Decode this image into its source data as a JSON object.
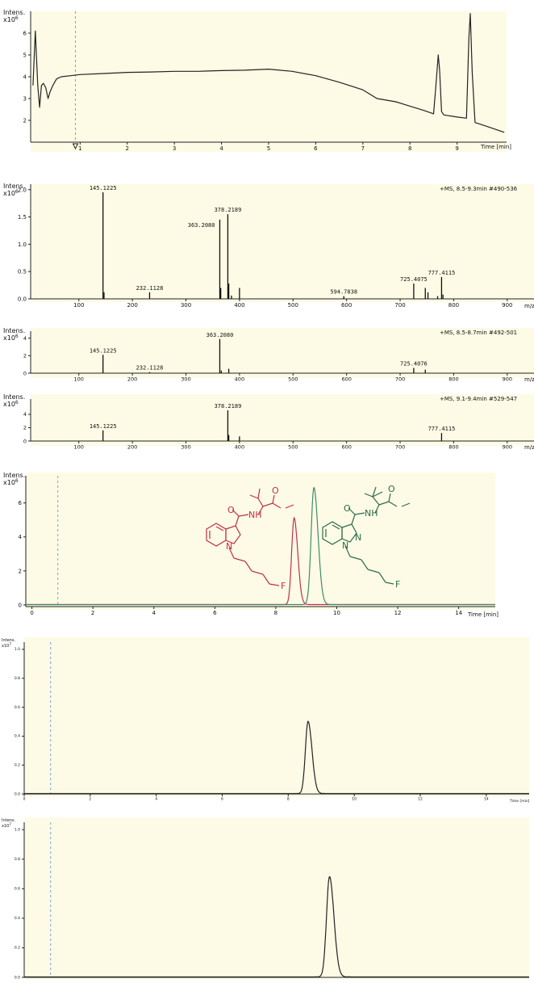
{
  "chart_data": [
    {
      "type": "line",
      "title": "",
      "ylabel": "Intens.",
      "yunit": "x10^6",
      "xlabel": "Time [min]",
      "xlim": [
        -0.05,
        10.05
      ],
      "ylim": [
        1.0,
        7.0
      ],
      "xticks": [
        1,
        2,
        3,
        4,
        5,
        6,
        7,
        8,
        9
      ],
      "yticks": [
        2,
        3,
        4,
        5,
        6
      ],
      "x": [
        0.0,
        0.05,
        0.1,
        0.14,
        0.18,
        0.22,
        0.27,
        0.32,
        0.36,
        0.42,
        0.5,
        0.6,
        0.8,
        1.0,
        1.5,
        2.0,
        2.5,
        3.0,
        3.5,
        4.0,
        4.5,
        5.0,
        5.5,
        6.0,
        6.5,
        7.0,
        7.3,
        7.7,
        8.0,
        8.3,
        8.5,
        8.55,
        8.6,
        8.63,
        8.67,
        8.72,
        9.0,
        9.2,
        9.25,
        9.28,
        9.32,
        9.38,
        9.6,
        9.8,
        10.0
      ],
      "y": [
        3.6,
        6.1,
        3.6,
        2.6,
        3.6,
        3.7,
        3.5,
        3.0,
        3.3,
        3.6,
        3.9,
        4.0,
        4.05,
        4.1,
        4.15,
        4.2,
        4.22,
        4.25,
        4.25,
        4.28,
        4.3,
        4.35,
        4.25,
        4.05,
        3.75,
        3.4,
        3.0,
        2.85,
        2.65,
        2.45,
        2.3,
        3.6,
        5.0,
        4.3,
        2.4,
        2.25,
        2.15,
        2.1,
        5.8,
        6.9,
        4.2,
        1.9,
        1.75,
        1.6,
        1.45
      ],
      "marker_x": 0.9
    },
    {
      "type": "bar",
      "title": "+MS, 8.5-9.3min #490-536",
      "ylabel": "Intens.",
      "yunit": "x10^6",
      "xlabel": "m/z",
      "xlim": [
        10,
        950
      ],
      "ylim": [
        0,
        2.1
      ],
      "xticks": [
        100,
        200,
        300,
        400,
        500,
        600,
        700,
        800,
        900
      ],
      "yticks": [
        0.0,
        0.5,
        1.0,
        1.5,
        2.0
      ],
      "peaks": [
        {
          "mz": 145.1225,
          "y": 1.95,
          "label": "145.1225"
        },
        {
          "mz": 147,
          "y": 0.12
        },
        {
          "mz": 232.1128,
          "y": 0.12,
          "label": "232.1128"
        },
        {
          "mz": 363.208,
          "y": 1.45,
          "label": "363.2080"
        },
        {
          "mz": 365,
          "y": 0.2
        },
        {
          "mz": 378.2189,
          "y": 1.55,
          "label": "378.2189"
        },
        {
          "mz": 380,
          "y": 0.28
        },
        {
          "mz": 385,
          "y": 0.06
        },
        {
          "mz": 400,
          "y": 0.2
        },
        {
          "mz": 594.7838,
          "y": 0.05,
          "label": "594.7838"
        },
        {
          "mz": 725.4075,
          "y": 0.28,
          "label": "725.4075"
        },
        {
          "mz": 747,
          "y": 0.2
        },
        {
          "mz": 752,
          "y": 0.12
        },
        {
          "mz": 770,
          "y": 0.05
        },
        {
          "mz": 777.4115,
          "y": 0.4,
          "label": "777.4115"
        },
        {
          "mz": 780,
          "y": 0.08
        }
      ]
    },
    {
      "type": "bar",
      "title": "+MS, 8.5-8.7min #492-501",
      "ylabel": "Intens.",
      "yunit": "x10^6",
      "xlabel": "m/z",
      "xlim": [
        10,
        950
      ],
      "ylim": [
        0,
        4.8
      ],
      "xticks": [
        100,
        200,
        300,
        400,
        500,
        600,
        700,
        800,
        900
      ],
      "yticks": [
        0,
        2,
        4
      ],
      "peaks": [
        {
          "mz": 145.1225,
          "y": 2.1,
          "label": "145.1225"
        },
        {
          "mz": 232.1128,
          "y": 0.12,
          "label": "232.1128"
        },
        {
          "mz": 363.208,
          "y": 3.9,
          "label": "363.2080"
        },
        {
          "mz": 366,
          "y": 0.3
        },
        {
          "mz": 380,
          "y": 0.5
        },
        {
          "mz": 725.4076,
          "y": 0.6,
          "label": "725.4076"
        },
        {
          "mz": 747,
          "y": 0.4
        }
      ]
    },
    {
      "type": "bar",
      "title": "+MS, 9.1-9.4min #529-547",
      "ylabel": "Intens.",
      "yunit": "x10^6",
      "xlabel": "m/z",
      "xlim": [
        10,
        950
      ],
      "ylim": [
        0,
        6.3
      ],
      "xticks": [
        100,
        200,
        300,
        400,
        500,
        600,
        700,
        800,
        900
      ],
      "yticks": [
        0,
        2,
        4
      ],
      "peaks": [
        {
          "mz": 145.1225,
          "y": 1.6,
          "label": "145.1225"
        },
        {
          "mz": 378.2189,
          "y": 4.6,
          "label": "378.2189"
        },
        {
          "mz": 380,
          "y": 0.9
        },
        {
          "mz": 400,
          "y": 0.7
        },
        {
          "mz": 777.4115,
          "y": 1.2,
          "label": "777.4115"
        }
      ]
    },
    {
      "type": "line",
      "title": "",
      "ylabel": "Intens.",
      "yunit": "x10^6",
      "xlabel": "Time [min]",
      "xlim": [
        -0.2,
        15.2
      ],
      "ylim": [
        -0.1,
        7.6
      ],
      "xticks": [
        0,
        2,
        4,
        6,
        8,
        10,
        12,
        14
      ],
      "yticks": [
        0,
        2,
        4,
        6
      ],
      "marker_x": 0.85,
      "series": [
        {
          "color": "#c0304a",
          "peak_x": 8.6,
          "peak_y": 5.1,
          "width": 0.08
        },
        {
          "color": "#3d8c68",
          "peak_x": 9.25,
          "peak_y": 6.9,
          "width": 0.09
        }
      ]
    },
    {
      "type": "line",
      "title": "",
      "ylabel": "Intens.",
      "yunit": "x10^7",
      "xlabel": "Time [min]",
      "xlim": [
        0,
        15.3
      ],
      "ylim": [
        0,
        1.05
      ],
      "xticks": [
        0,
        2,
        4,
        6,
        8,
        10,
        12,
        14
      ],
      "yticks": [
        0.0,
        0.2,
        0.4,
        0.6,
        0.8,
        1.0
      ],
      "marker_x": 0.8,
      "peak_x": 8.6,
      "peak_y": 0.5,
      "width": 0.08
    },
    {
      "type": "line",
      "title": "",
      "ylabel": "Intens.",
      "yunit": "x10^7",
      "xlabel": "",
      "xlim": [
        0,
        15.3
      ],
      "ylim": [
        0,
        1.05
      ],
      "xticks": [],
      "yticks": [
        0.0,
        0.2,
        0.4,
        0.6,
        0.8,
        1.0
      ],
      "marker_x": 0.8,
      "peak_x": 9.25,
      "peak_y": 0.68,
      "width": 0.09
    }
  ],
  "structures": {
    "red": {
      "nh": "NH",
      "f": "F",
      "n": "N",
      "o1": "O",
      "o2": "O"
    },
    "green": {
      "nh": "NH",
      "f": "F",
      "n1": "N",
      "n2": "N",
      "o1": "O",
      "o2": "O"
    }
  }
}
